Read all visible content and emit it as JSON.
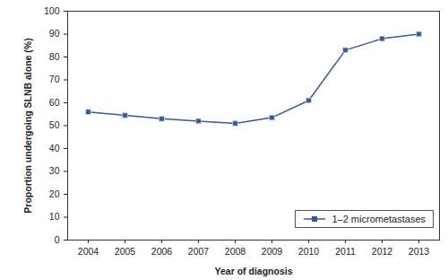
{
  "chart_data": {
    "type": "line",
    "x_label": "Year of diagnosis",
    "y_label": "Proportion undergoing SLNB alone (%)",
    "categories": [
      "2004",
      "2005",
      "2006",
      "2007",
      "2008",
      "2009",
      "2010",
      "2011",
      "2012",
      "2013"
    ],
    "series": [
      {
        "name": "1–2 micrometastases",
        "color": "#3a5796",
        "marker": "square",
        "line_style": "solid",
        "values": [
          56,
          54.5,
          53,
          52,
          51,
          53.5,
          61,
          83,
          88,
          90
        ]
      }
    ],
    "ylim": [
      0,
      100
    ],
    "yticks": [
      0,
      10,
      20,
      30,
      40,
      50,
      60,
      70,
      80,
      90,
      100
    ],
    "grid": false,
    "legend": "lower right"
  }
}
